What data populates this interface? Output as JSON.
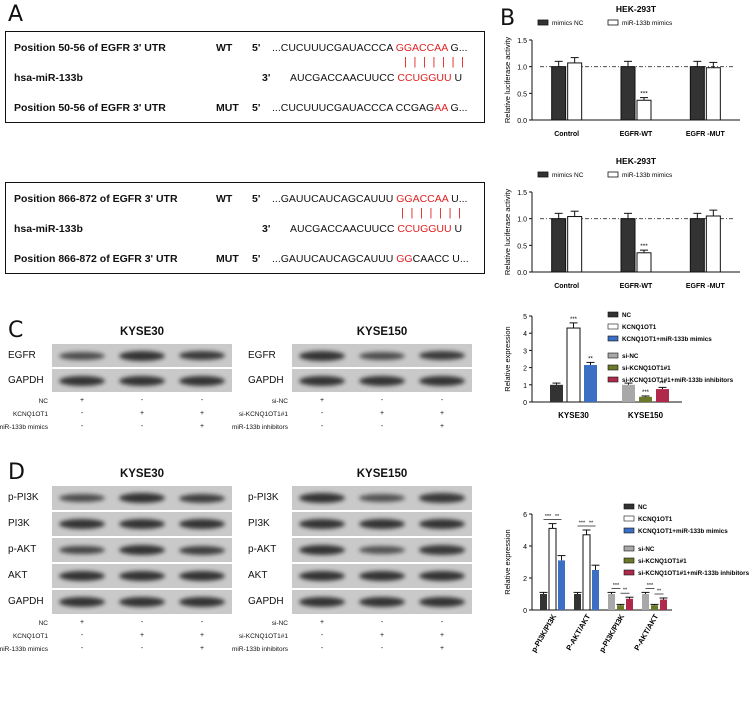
{
  "panels": {
    "A": "A",
    "B": "B",
    "C": "C",
    "D": "D"
  },
  "panelA": {
    "box1": {
      "rows": [
        {
          "label": "Position 50-56 of EGFR 3' UTR",
          "tag": "WT",
          "prime": "5'",
          "seq_plain": "...CUCUUUCGAUACCCA ",
          "seq_red": "GGACCAA",
          "seq_tail": " G..."
        },
        {
          "label": "hsa-miR-133b",
          "tag": "",
          "prime": "3'",
          "seq_plain": "AUCGACCAACUUCC ",
          "seq_red": "CCUGGUU",
          "seq_tail": " U"
        },
        {
          "label": "Position 50-56 of EGFR 3' UTR",
          "tag": "MUT",
          "prime": "5'",
          "seq_plain": "...CUCUUUCGAUACCCA CCGAG",
          "seq_red": "AA",
          "seq_tail": " G..."
        }
      ],
      "pairing": "| | | | | | |"
    },
    "box2": {
      "rows": [
        {
          "label": "Position 866-872 of EGFR 3' UTR",
          "tag": "WT",
          "prime": "5'",
          "seq_plain": "...GAUUCAUCAGCAUUU ",
          "seq_red": "GGACCAA",
          "seq_tail": " U..."
        },
        {
          "label": "hsa-miR-133b",
          "tag": "",
          "prime": "3'",
          "seq_plain": "AUCGACCAACUUCC ",
          "seq_red": "CCUGGUU",
          "seq_tail": " U"
        },
        {
          "label": "Position 866-872 of EGFR 3' UTR",
          "tag": "MUT",
          "prime": "5'",
          "seq_plain": "...GAUUCAUCAGCAUUU ",
          "seq_red": "GG",
          "seq_tail": "CAACC U..."
        }
      ],
      "pairing": "| | | | | | |"
    }
  },
  "panelC": {
    "left": {
      "title": "KYSE30",
      "rows": [
        "EGFR",
        "GAPDH"
      ],
      "conditions": [
        {
          "label": "NC",
          "marks": [
            "+",
            "-",
            "-"
          ]
        },
        {
          "label": "KCNQ1OT1",
          "marks": [
            "-",
            "+",
            "+"
          ]
        },
        {
          "label": "miR-133b mimics",
          "marks": [
            "-",
            "-",
            "+"
          ]
        }
      ]
    },
    "right": {
      "title": "KYSE150",
      "rows": [
        "EGFR",
        "GAPDH"
      ],
      "conditions": [
        {
          "label": "si-NC",
          "marks": [
            "+",
            "-",
            "-"
          ]
        },
        {
          "label": "si-KCNQ1OT1#1",
          "marks": [
            "-",
            "+",
            "+"
          ]
        },
        {
          "label": "miR-133b inhibitors",
          "marks": [
            "-",
            "-",
            "+"
          ]
        }
      ]
    }
  },
  "panelD": {
    "left": {
      "title": "KYSE30",
      "rows": [
        "p-PI3K",
        "PI3K",
        "p-AKT",
        "AKT",
        "GAPDH"
      ],
      "conditions": [
        {
          "label": "NC",
          "marks": [
            "+",
            "-",
            "-"
          ]
        },
        {
          "label": "KCNQ1OT1",
          "marks": [
            "-",
            "+",
            "+"
          ]
        },
        {
          "label": "miR-133b mimics",
          "marks": [
            "-",
            "-",
            "+"
          ]
        }
      ]
    },
    "right": {
      "title": "KYSE150",
      "rows": [
        "p-PI3K",
        "PI3K",
        "p-AKT",
        "AKT",
        "GAPDH"
      ],
      "conditions": [
        {
          "label": "si-NC",
          "marks": [
            "+",
            "-",
            "-"
          ]
        },
        {
          "label": "si-KCNQ1OT1#1",
          "marks": [
            "-",
            "+",
            "+"
          ]
        },
        {
          "label": "miR-133b inhibitors",
          "marks": [
            "-",
            "-",
            "+"
          ]
        }
      ]
    }
  },
  "chart_data": [
    {
      "type": "bar",
      "title": "HEK-293T",
      "ylabel": "Relative luciferase activity",
      "ylim": [
        0,
        1.5
      ],
      "yticks": [
        0.0,
        0.5,
        1.0,
        1.5
      ],
      "categories": [
        "Control",
        "EGFR-WT",
        "EGFR -MUT"
      ],
      "series": [
        {
          "name": "mimics NC",
          "color": "#333333",
          "values": [
            1.0,
            1.0,
            1.0
          ],
          "errors": [
            0.1,
            0.1,
            0.1
          ],
          "sig": [
            "",
            "",
            ""
          ]
        },
        {
          "name": "miR-133b mimics",
          "color": "#ffffff",
          "values": [
            1.07,
            0.37,
            0.98
          ],
          "errors": [
            0.1,
            0.05,
            0.1
          ],
          "sig": [
            "",
            "***",
            ""
          ]
        }
      ],
      "reference_line": 1.0
    },
    {
      "type": "bar",
      "title": "HEK-293T",
      "ylabel": "Relative luciferase activity",
      "ylim": [
        0,
        1.5
      ],
      "yticks": [
        0.0,
        0.5,
        1.0,
        1.5
      ],
      "categories": [
        "Control",
        "EGFR-WT",
        "EGFR -MUT"
      ],
      "series": [
        {
          "name": "mimics NC",
          "color": "#333333",
          "values": [
            1.0,
            1.0,
            1.0
          ],
          "errors": [
            0.1,
            0.1,
            0.1
          ],
          "sig": [
            "",
            "",
            ""
          ]
        },
        {
          "name": "miR-133b mimics",
          "color": "#ffffff",
          "values": [
            1.04,
            0.36,
            1.05
          ],
          "errors": [
            0.1,
            0.05,
            0.11
          ],
          "sig": [
            "",
            "***",
            ""
          ]
        }
      ],
      "reference_line": 1.0
    },
    {
      "type": "bar",
      "ylabel": "Relative expression",
      "ylim": [
        0,
        5
      ],
      "yticks": [
        0,
        1,
        2,
        3,
        4,
        5
      ],
      "groups": [
        {
          "label": "KYSE30",
          "bars": [
            {
              "name": "NC",
              "color": "#333333",
              "value": 1.0,
              "error": 0.1,
              "sig": ""
            },
            {
              "name": "KCNQ1OT1",
              "color": "#ffffff",
              "value": 4.3,
              "error": 0.3,
              "sig": "***"
            },
            {
              "name": "KCNQ1OT1+miR-133b mimics",
              "color": "#3a6fc4",
              "value": 2.15,
              "error": 0.15,
              "sig": "**"
            }
          ]
        },
        {
          "label": "KYSE150",
          "bars": [
            {
              "name": "si-NC",
              "color": "#a8a8a8",
              "value": 1.0,
              "error": 0.1,
              "sig": ""
            },
            {
              "name": "si-KCNQ1OT1#1",
              "color": "#6b7a2a",
              "value": 0.3,
              "error": 0.05,
              "sig": "***"
            },
            {
              "name": "si-KCNQ1OT1#1+miR-133b inhibitors",
              "color": "#b0284a",
              "value": 0.75,
              "error": 0.1,
              "sig": "***"
            }
          ]
        }
      ],
      "legend": [
        "NC",
        "KCNQ1OT1",
        "KCNQ1OT1+miR-133b mimics",
        "si-NC",
        "si-KCNQ1OT1#1",
        "si-KCNQ1OT1#1+miR-133b inhibitors"
      ]
    },
    {
      "type": "bar",
      "ylabel": "Relative expression",
      "ylim": [
        0,
        6
      ],
      "yticks": [
        0,
        2,
        4,
        6
      ],
      "groups": [
        {
          "label": "p-PI3K/PI3K",
          "bars": [
            {
              "name": "NC",
              "color": "#333333",
              "value": 1.0,
              "error": 0.1
            },
            {
              "name": "KCNQ1OT1",
              "color": "#ffffff",
              "value": 5.1,
              "error": 0.3
            },
            {
              "name": "KCNQ1OT1+miR-133b mimics",
              "color": "#3a6fc4",
              "value": 3.1,
              "error": 0.3
            }
          ],
          "brackets": [
            {
              "from": 0,
              "to": 1,
              "sig": "***"
            },
            {
              "from": 1,
              "to": 2,
              "sig": "**"
            }
          ]
        },
        {
          "label": "P-AKT/AKT",
          "bars": [
            {
              "name": "NC",
              "color": "#333333",
              "value": 1.0,
              "error": 0.1
            },
            {
              "name": "KCNQ1OT1",
              "color": "#ffffff",
              "value": 4.7,
              "error": 0.3
            },
            {
              "name": "KCNQ1OT1+miR-133b mimics",
              "color": "#3a6fc4",
              "value": 2.5,
              "error": 0.3
            }
          ],
          "brackets": [
            {
              "from": 0,
              "to": 1,
              "sig": "***"
            },
            {
              "from": 1,
              "to": 2,
              "sig": "**"
            }
          ]
        },
        {
          "label": "p-PI3K/PI3K",
          "bars": [
            {
              "name": "si-NC",
              "color": "#a8a8a8",
              "value": 1.0,
              "error": 0.1
            },
            {
              "name": "si-KCNQ1OT1#1",
              "color": "#6b7a2a",
              "value": 0.3,
              "error": 0.05
            },
            {
              "name": "si-KCNQ1OT1#1+miR-133b inhibitors",
              "color": "#b0284a",
              "value": 0.7,
              "error": 0.1
            }
          ],
          "brackets": [
            {
              "from": 0,
              "to": 1,
              "sig": "***"
            },
            {
              "from": 1,
              "to": 2,
              "sig": "**"
            }
          ]
        },
        {
          "label": "P-AKT/AKT",
          "bars": [
            {
              "name": "si-NC",
              "color": "#a8a8a8",
              "value": 1.0,
              "error": 0.1
            },
            {
              "name": "si-KCNQ1OT1#1",
              "color": "#6b7a2a",
              "value": 0.3,
              "error": 0.05
            },
            {
              "name": "si-KCNQ1OT1#1+miR-133b inhibitors",
              "color": "#b0284a",
              "value": 0.65,
              "error": 0.1
            }
          ],
          "brackets": [
            {
              "from": 0,
              "to": 1,
              "sig": "***"
            },
            {
              "from": 1,
              "to": 2,
              "sig": "**"
            }
          ]
        }
      ],
      "legend": [
        "NC",
        "KCNQ1OT1",
        "KCNQ1OT1+miR-133b mimics",
        "si-NC",
        "si-KCNQ1OT1#1",
        "si-KCNQ1OT1#1+miR-133b inhibitors"
      ]
    }
  ]
}
